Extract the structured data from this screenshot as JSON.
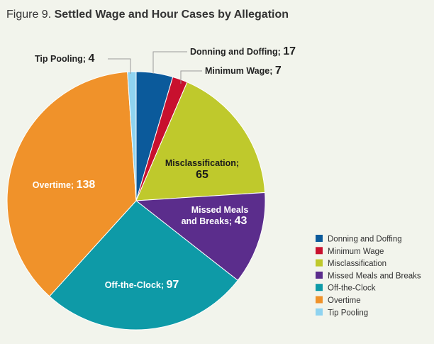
{
  "figure_label": "Figure 9.",
  "title": "Settled Wage and Hour Cases by Allegation",
  "chart_data": {
    "type": "pie",
    "title": "Settled Wage and Hour Cases by Allegation",
    "slices": [
      {
        "name": "Donning and Doffing",
        "value": 17,
        "label": "Donning and Doffing;",
        "value_label": "17",
        "color": "#0b5a9b",
        "text_color": "#222222"
      },
      {
        "name": "Minimum Wage",
        "value": 7,
        "label": "Minimum Wage;",
        "value_label": "7",
        "color": "#c8102e",
        "text_color": "#222222"
      },
      {
        "name": "Misclassification",
        "value": 65,
        "label": "Misclassification;",
        "value_label": "65",
        "color": "#bfc92c",
        "text_color": "#1a1a1a"
      },
      {
        "name": "Missed Meals and Breaks",
        "value": 43,
        "label": "Missed Meals and Breaks;",
        "value_label": "43",
        "color": "#5b2d8c",
        "text_color": "#ffffff"
      },
      {
        "name": "Off-the-Clock",
        "value": 97,
        "label": "Off-the-Clock;",
        "value_label": "97",
        "color": "#0e9aa7",
        "text_color": "#ffffff"
      },
      {
        "name": "Overtime",
        "value": 138,
        "label": "Overtime;",
        "value_label": "138",
        "color": "#f0922a",
        "text_color": "#ffffff"
      },
      {
        "name": "Tip Pooling",
        "value": 4,
        "label": "Tip Pooling;",
        "value_label": "4",
        "color": "#8fd3f0",
        "text_color": "#222222"
      }
    ],
    "legend": [
      "Donning and Doffing",
      "Minimum Wage",
      "Misclassification",
      "Missed Meals and Breaks",
      "Off-the-Clock",
      "Overtime",
      "Tip Pooling"
    ],
    "legend_position": "bottom-right"
  }
}
